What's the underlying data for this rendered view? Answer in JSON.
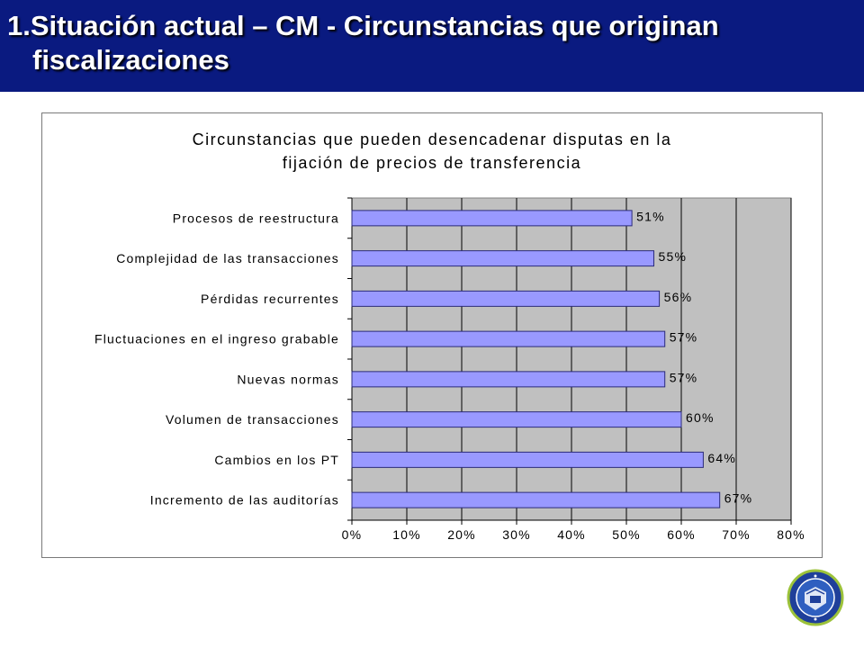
{
  "header": {
    "title_line1": "1.Situación actual – CM - Circunstancias que originan",
    "title_line2": "fiscalizaciones"
  },
  "colors": {
    "header_bg": "#0a1a80",
    "plot_bg": "#c0c0c0",
    "bar_fill": "#9999ff",
    "bar_stroke": "#2b2b7a"
  },
  "chart_data": {
    "type": "bar",
    "orientation": "horizontal",
    "title_lines": [
      "Circunstancias que pueden desencadenar disputas en la",
      "fijación de precios de transferencia"
    ],
    "categories": [
      "Procesos de reestructura",
      "Complejidad de las transacciones",
      "Pérdidas recurrentes",
      "Fluctuaciones en el ingreso grabable",
      "Nuevas normas",
      "Volumen de transacciones",
      "Cambios en los PT",
      "Incremento de las auditorías"
    ],
    "values": [
      51,
      55,
      56,
      57,
      57,
      60,
      64,
      67
    ],
    "value_labels": [
      "51%",
      "55%",
      "56%",
      "57%",
      "57%",
      "60%",
      "64%",
      "67%"
    ],
    "xlim": [
      0,
      80
    ],
    "x_ticks": [
      0,
      10,
      20,
      30,
      40,
      50,
      60,
      70,
      80
    ],
    "x_tick_labels": [
      "0%",
      "10%",
      "20%",
      "30%",
      "40%",
      "50%",
      "60%",
      "70%",
      "80%"
    ],
    "grid": true,
    "legend": "none"
  },
  "logo": {
    "icon": "organization-seal-icon"
  }
}
